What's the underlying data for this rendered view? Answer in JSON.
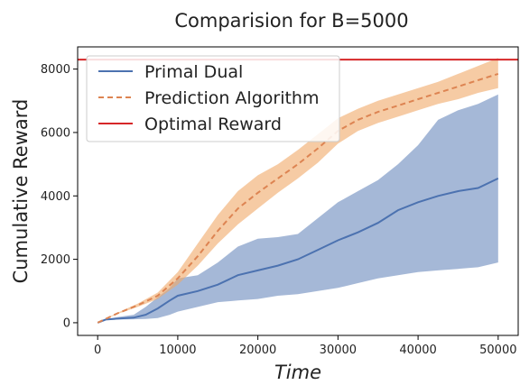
{
  "chart_data": {
    "type": "line",
    "title": "Comparision for B=5000",
    "xlabel": "Time",
    "ylabel": "Cumulative Reward",
    "xlim": [
      -2500,
      52500
    ],
    "ylim": [
      -400,
      8700
    ],
    "xticks": [
      0,
      10000,
      20000,
      30000,
      40000,
      50000
    ],
    "yticks": [
      0,
      2000,
      4000,
      6000,
      8000
    ],
    "grid": false,
    "legend_position": "top-left",
    "series": [
      {
        "name": "Primal Dual",
        "style": "solid",
        "color": "#4c72b0",
        "band_color": "#4c72b0",
        "x": [
          0,
          1000,
          2500,
          4500,
          6000,
          7500,
          9000,
          10000,
          12500,
          15000,
          17500,
          20000,
          22500,
          25000,
          27500,
          30000,
          32500,
          35000,
          37500,
          40000,
          42500,
          45000,
          47500,
          50000
        ],
        "y": [
          0,
          100,
          130,
          160,
          250,
          450,
          700,
          850,
          1000,
          1200,
          1500,
          1650,
          1800,
          2000,
          2300,
          2600,
          2850,
          3150,
          3550,
          3800,
          4000,
          4150,
          4250,
          4550
        ],
        "lower": [
          0,
          90,
          100,
          110,
          120,
          150,
          250,
          350,
          500,
          650,
          700,
          750,
          850,
          900,
          1000,
          1100,
          1250,
          1400,
          1500,
          1600,
          1650,
          1700,
          1750,
          1900
        ],
        "upper": [
          0,
          110,
          180,
          250,
          500,
          800,
          1100,
          1400,
          1500,
          1900,
          2400,
          2650,
          2700,
          2800,
          3300,
          3800,
          4150,
          4500,
          5000,
          5600,
          6400,
          6700,
          6900,
          7200
        ]
      },
      {
        "name": "Prediction Algorithm",
        "style": "dashed",
        "color": "#dd8452",
        "band_color": "#f0a868",
        "x": [
          0,
          2500,
          5000,
          7500,
          10000,
          12500,
          15000,
          17500,
          20000,
          22500,
          25000,
          27500,
          30000,
          32500,
          35000,
          37500,
          40000,
          42500,
          45000,
          47500,
          50000
        ],
        "y": [
          0,
          300,
          550,
          850,
          1400,
          2100,
          2900,
          3600,
          4100,
          4550,
          5000,
          5500,
          6050,
          6400,
          6650,
          6850,
          7050,
          7250,
          7450,
          7650,
          7850
        ],
        "lower": [
          0,
          280,
          500,
          750,
          1200,
          1800,
          2500,
          3100,
          3600,
          4100,
          4550,
          5050,
          5650,
          6050,
          6300,
          6500,
          6700,
          6900,
          7050,
          7250,
          7400
        ],
        "upper": [
          0,
          320,
          600,
          950,
          1600,
          2500,
          3400,
          4150,
          4650,
          5000,
          5450,
          5950,
          6450,
          6750,
          7000,
          7200,
          7400,
          7600,
          7850,
          8100,
          8350
        ]
      },
      {
        "name": "Optimal Reward",
        "style": "solid",
        "color": "#d62728",
        "constant": 8300
      }
    ]
  }
}
